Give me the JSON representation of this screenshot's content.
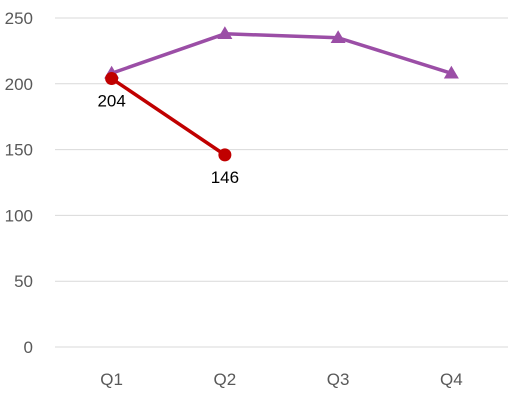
{
  "chart_data": {
    "type": "line",
    "categories": [
      "Q1",
      "Q2",
      "Q3",
      "Q4"
    ],
    "ylim": [
      0,
      250
    ],
    "y_ticks": [
      0,
      50,
      100,
      150,
      200,
      250
    ],
    "grid": true,
    "legend": "none",
    "series": [
      {
        "color": "#9b4ea6",
        "marker": "triangle",
        "values": [
          208,
          238,
          235,
          208
        ],
        "show_labels": false
      },
      {
        "color": "#c00000",
        "marker": "circle",
        "values": [
          204,
          146,
          null,
          null
        ],
        "show_labels": true
      }
    ],
    "colors": {
      "grid": "#d9d9d9",
      "axis_text": "#595959",
      "data_label": "#000000"
    }
  }
}
